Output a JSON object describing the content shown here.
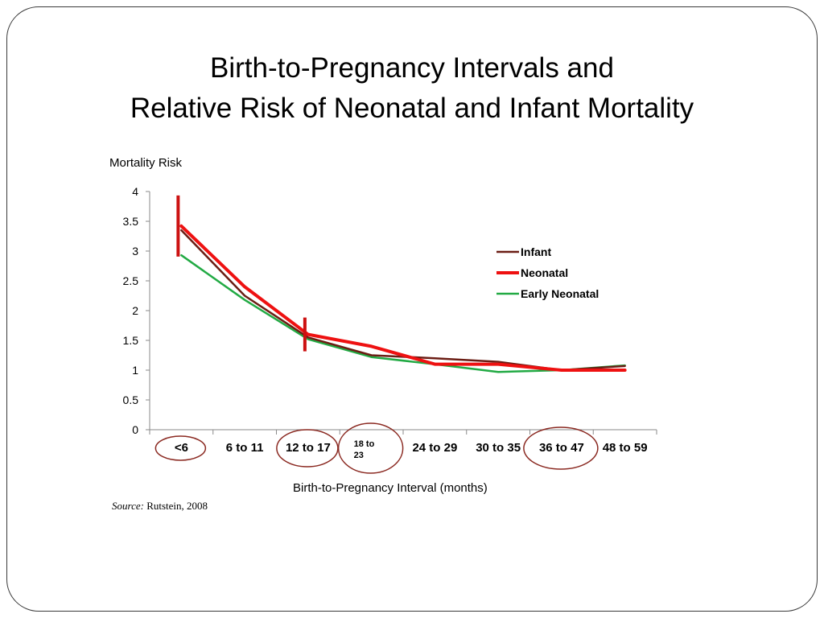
{
  "slide": {
    "title_line1": "Birth-to-Pregnancy Intervals and",
    "title_line2": "Relative Risk of Neonatal and Infant Mortality",
    "source_key": "Source:",
    "source_value": "Rutstein, 2008"
  },
  "chart_data": {
    "type": "line",
    "ylabel": "Mortality Risk",
    "xlabel": "Birth-to-Pregnancy Interval (months)",
    "categories": [
      "<6",
      "6 to 11",
      "12 to 17",
      "18 to 23",
      "24 to 29",
      "30 to 35",
      "36 to 47",
      "48 to 59"
    ],
    "ylim": [
      0,
      4
    ],
    "yticks": [
      "0",
      "0.5",
      "1",
      "1.5",
      "2",
      "2.5",
      "3",
      "3.5",
      "4"
    ],
    "grid": false,
    "legend_position": "right",
    "series": [
      {
        "name": "Infant",
        "color": "#6b1d14",
        "values": [
          3.35,
          2.25,
          1.55,
          1.25,
          1.2,
          1.14,
          1.0,
          1.07
        ]
      },
      {
        "name": "Neonatal",
        "color": "#ee1111",
        "values": [
          3.42,
          2.4,
          1.6,
          1.4,
          1.1,
          1.1,
          1.0,
          1.0
        ]
      },
      {
        "name": "Early Neonatal",
        "color": "#22aa44",
        "values": [
          2.93,
          2.18,
          1.52,
          1.22,
          1.1,
          0.97,
          1.0,
          1.08
        ]
      }
    ],
    "annotations": {
      "marker_color": "#cc1111",
      "vertical_markers": [
        "<6",
        "12 to 17"
      ],
      "circle_color": "#8b2a22",
      "circled_categories": [
        "<6",
        "12 to 17",
        "18 to 23",
        "36 to 47"
      ],
      "small_label_categories": [
        "18 to 23"
      ]
    }
  }
}
